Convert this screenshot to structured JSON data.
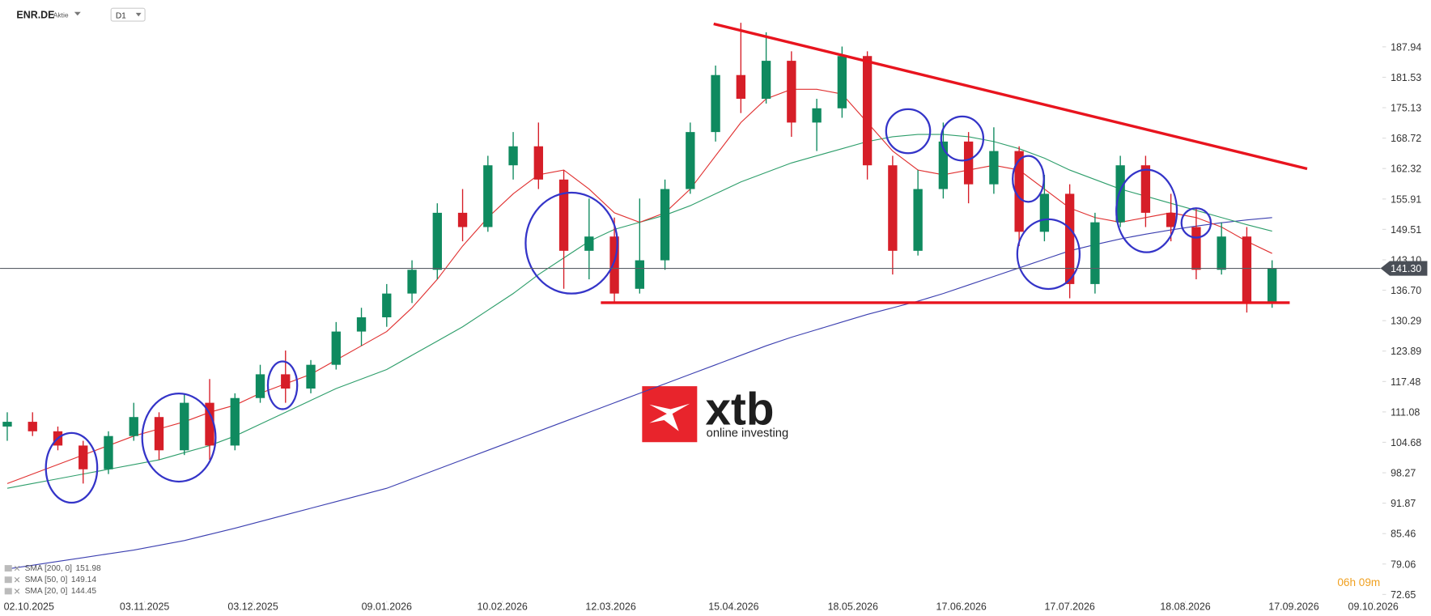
{
  "header": {
    "symbol": "ENR.DE",
    "asset_type": "Aktie",
    "timeframe": "D1"
  },
  "chart_data": {
    "type": "candlestick",
    "ohlc": {
      "x": [
        "26.09.2025",
        "03.10.2025",
        "10.10.2025",
        "17.10.2025",
        "24.10.2025",
        "31.10.2025",
        "07.11.2025",
        "14.11.2025",
        "21.11.2025",
        "28.11.2025",
        "05.12.2025",
        "12.12.2025",
        "19.12.2025",
        "26.12.2025",
        "02.01.2026",
        "09.01.2026",
        "16.01.2026",
        "23.01.2026",
        "30.01.2026",
        "06.02.2026",
        "13.02.2026",
        "20.02.2026",
        "27.02.2026",
        "06.03.2026",
        "13.03.2026",
        "20.03.2026",
        "27.03.2026",
        "03.04.2026",
        "10.04.2026",
        "17.04.2026",
        "24.04.2026",
        "01.05.2026",
        "08.05.2026",
        "15.05.2026",
        "22.05.2026",
        "29.05.2026",
        "05.06.2026",
        "12.06.2026",
        "19.06.2026",
        "26.06.2026",
        "03.07.2026",
        "10.07.2026",
        "17.07.2026",
        "24.07.2026",
        "31.07.2026",
        "07.08.2026",
        "14.08.2026",
        "21.08.2026",
        "28.08.2026",
        "04.09.2026",
        "11.09.2026"
      ],
      "open": [
        108,
        109,
        107,
        104,
        99,
        106,
        110,
        103,
        113,
        104,
        114,
        119,
        116,
        121,
        128,
        131,
        136,
        141,
        153,
        150,
        163,
        167,
        160,
        145,
        148,
        137,
        143,
        158,
        170,
        182,
        177,
        185,
        172,
        175,
        186,
        163,
        145,
        158,
        168,
        159,
        166,
        149,
        157,
        138,
        151,
        163,
        153,
        150,
        141,
        148,
        134
      ],
      "high": [
        111,
        111,
        108,
        105,
        107,
        113,
        111,
        115,
        118,
        115,
        121,
        124,
        122,
        130,
        133,
        138,
        143,
        155,
        158,
        165,
        170,
        172,
        162,
        156,
        152,
        156,
        160,
        172,
        184,
        193,
        191,
        187,
        177,
        188,
        187,
        165,
        162,
        172,
        170,
        171,
        167,
        161,
        159,
        153,
        165,
        165,
        157,
        154,
        151,
        150,
        143
      ],
      "low": [
        105,
        106,
        103,
        96,
        98,
        105,
        101,
        102,
        101,
        103,
        113,
        113,
        115,
        120,
        125,
        129,
        134,
        139,
        147,
        149,
        160,
        158,
        137,
        139,
        134,
        136,
        141,
        157,
        168,
        174,
        176,
        169,
        166,
        173,
        160,
        140,
        144,
        156,
        155,
        157,
        146,
        147,
        135,
        136,
        150,
        150,
        147,
        139,
        140,
        132,
        133
      ],
      "close": [
        109,
        107,
        104,
        99,
        106,
        110,
        103,
        113,
        104,
        114,
        119,
        116,
        121,
        128,
        131,
        136,
        141,
        153,
        150,
        163,
        167,
        160,
        145,
        148,
        136,
        143,
        158,
        170,
        182,
        177,
        185,
        172,
        175,
        186,
        163,
        145,
        158,
        168,
        159,
        166,
        149,
        157,
        138,
        151,
        163,
        153,
        150,
        141,
        148,
        134,
        141.3
      ]
    },
    "up_color": "#0f8a5f",
    "down_color": "#d61e28",
    "series": [
      {
        "name": "SMA [200, 0]",
        "color": "#3b3fb0",
        "values": [
          78,
          78.8,
          79.6,
          80.4,
          81.2,
          82,
          83,
          84,
          85.3,
          86.6,
          88,
          89.4,
          90.8,
          92.2,
          93.6,
          95,
          97,
          99,
          101,
          103,
          105,
          107,
          109,
          111,
          113,
          115,
          117,
          119,
          121,
          123,
          125,
          126.8,
          128.4,
          130,
          131.6,
          133,
          134.4,
          136,
          137.8,
          139.6,
          141.4,
          143.2,
          145,
          146.3,
          147.5,
          148.5,
          149.4,
          150.2,
          150.9,
          151.5,
          151.98
        ]
      },
      {
        "name": "SMA [50, 0]",
        "color": "#2e9e6b",
        "values": [
          95,
          96,
          97,
          98,
          99,
          100,
          101,
          102.5,
          104,
          106,
          108.5,
          111,
          113.5,
          116,
          118,
          120,
          123,
          126,
          129,
          132.5,
          136,
          140,
          143.5,
          147,
          149.5,
          151,
          152.5,
          154.5,
          157,
          159.5,
          161.5,
          163.5,
          165,
          166.5,
          168,
          169,
          169.5,
          169.5,
          169,
          168,
          166.5,
          164.5,
          162,
          160,
          158,
          156.5,
          155,
          153.5,
          152,
          150.5,
          149.14
        ]
      },
      {
        "name": "SMA [20, 0]",
        "color": "#e03030",
        "values": [
          96,
          98,
          100,
          102,
          104,
          106,
          107.5,
          109,
          111,
          112.5,
          115,
          117,
          119,
          122,
          125,
          128,
          133,
          139,
          146,
          152,
          157,
          161,
          162,
          158,
          153,
          151,
          153,
          158,
          165,
          172,
          177,
          179,
          179,
          178,
          172,
          166,
          162,
          161,
          162,
          163,
          162,
          158,
          154,
          152,
          151,
          152,
          153,
          152,
          150,
          147,
          144.45
        ]
      }
    ],
    "xlim": [
      "24.09.2025",
      "11.10.2026"
    ],
    "xticks": [
      "02.10.2025",
      "03.11.2025",
      "03.12.2025",
      "09.01.2026",
      "10.02.2026",
      "12.03.2026",
      "15.04.2026",
      "18.05.2026",
      "17.06.2026",
      "17.07.2026",
      "18.08.2026",
      "17.09.2026",
      "09.10.2026"
    ],
    "ylim": [
      71.3,
      197.8
    ],
    "yticks": [
      187.94,
      181.53,
      175.13,
      168.72,
      162.32,
      155.91,
      149.51,
      {
        "value": 143.1,
        "label": "143.10"
      },
      {
        "value": 136.7,
        "label": "136.70"
      },
      130.29,
      123.89,
      117.48,
      111.08,
      104.68,
      98.27,
      91.87,
      85.46,
      79.06,
      72.65
    ],
    "current_price": {
      "value": 141.3,
      "label": "141.30"
    }
  },
  "watermark": {
    "brand": "xtb",
    "tagline": "online investing"
  },
  "timer": "06h 09m"
}
